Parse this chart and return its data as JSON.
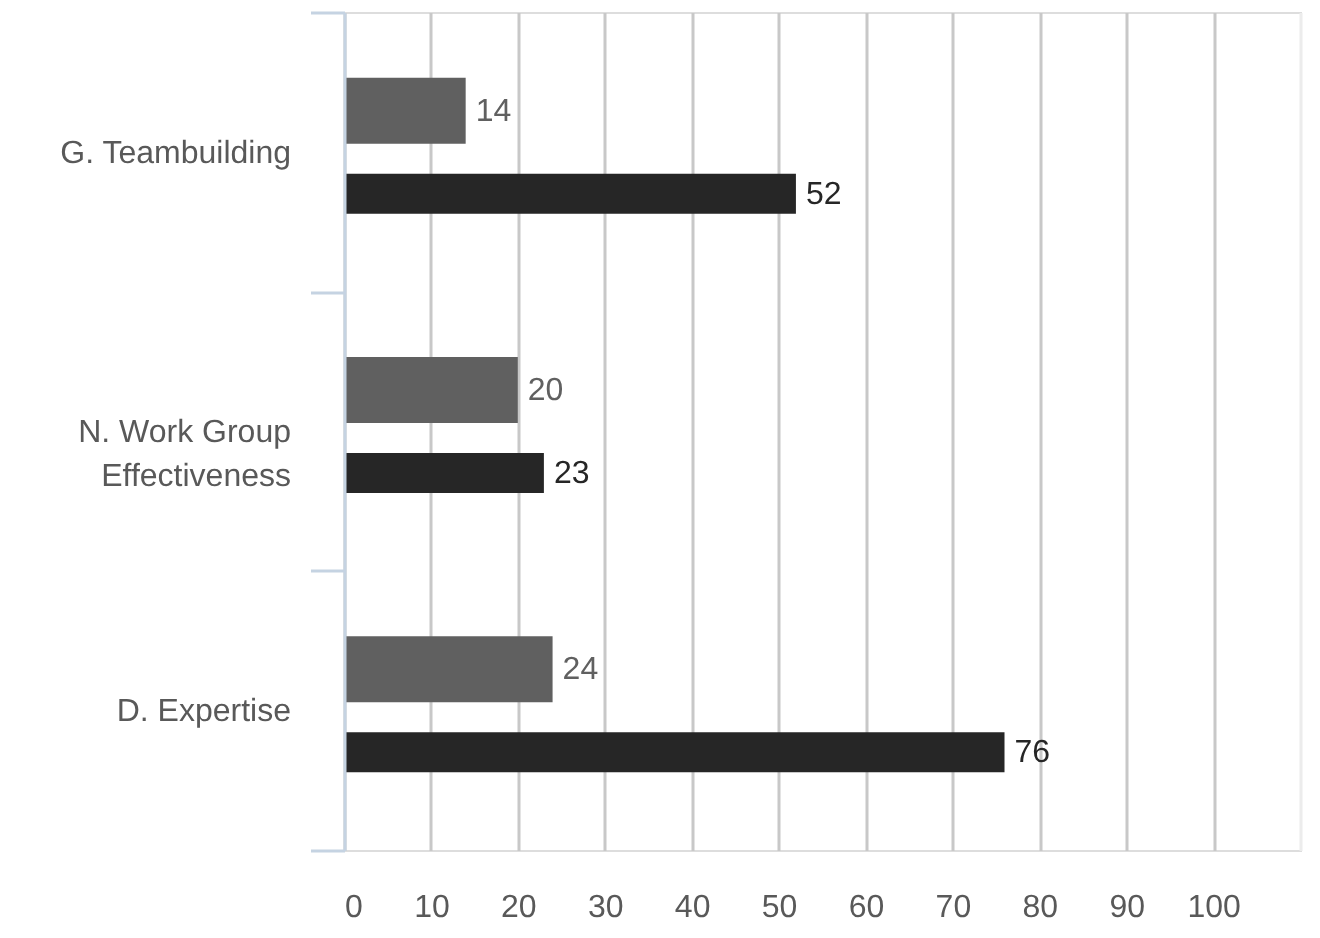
{
  "chart_data": {
    "type": "bar",
    "orientation": "horizontal",
    "categories": [
      "G. Teambuilding",
      "N. Work Group Effectiveness",
      "D. Expertise"
    ],
    "series": [
      {
        "color": "#606060",
        "values": [
          14,
          20,
          24
        ]
      },
      {
        "color": "#262626",
        "values": [
          52,
          23,
          76
        ]
      }
    ],
    "xlim": [
      0,
      110
    ],
    "xticks": [
      0,
      10,
      20,
      30,
      40,
      50,
      60,
      70,
      80,
      90,
      100,
      {
        "value": 110,
        "label": null
      }
    ],
    "grid": "x",
    "data_labels": true
  }
}
